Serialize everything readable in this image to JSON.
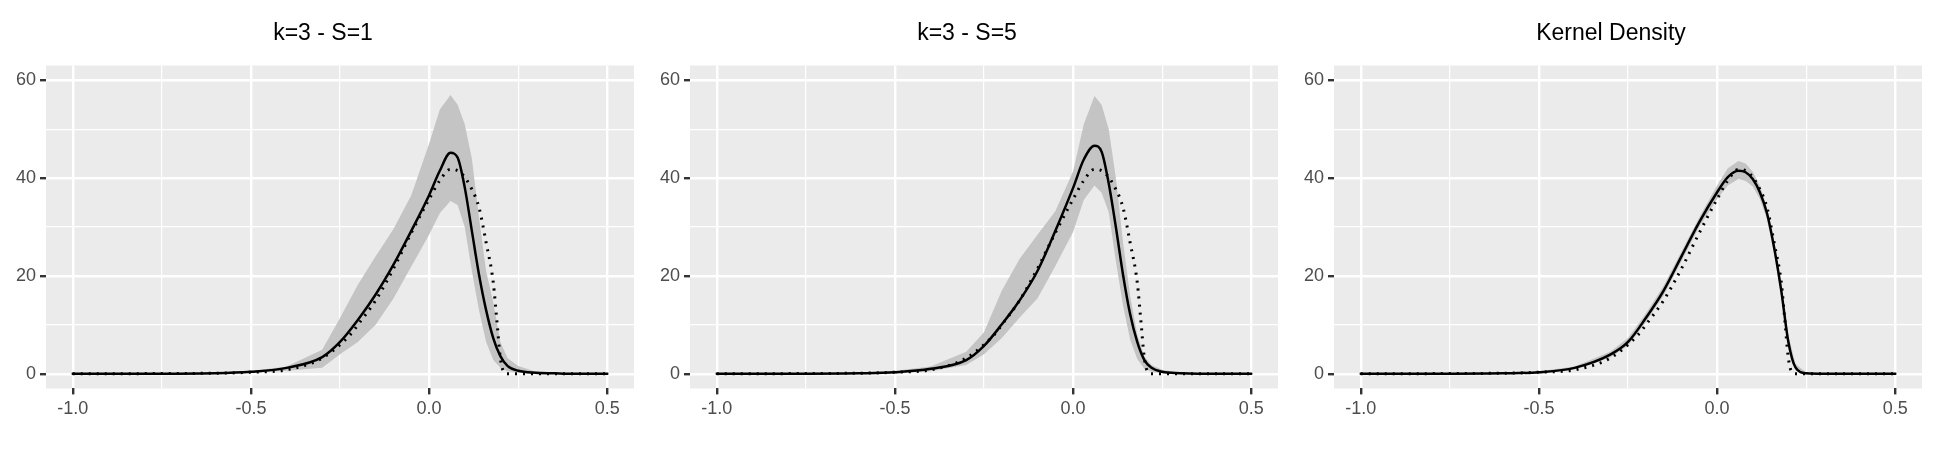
{
  "chart_data": [
    {
      "type": "line",
      "title": "k=3 - S=1",
      "x": [
        -1,
        -0.8,
        -0.6,
        -0.5,
        -0.4,
        -0.3,
        -0.25,
        -0.2,
        -0.15,
        -0.1,
        -0.05,
        0,
        0.03,
        0.06,
        0.08,
        0.1,
        0.12,
        0.14,
        0.16,
        0.18,
        0.2,
        0.22,
        0.25,
        0.3,
        0.35,
        0.4,
        0.5
      ],
      "xlim": [
        -1.075,
        0.575
      ],
      "xticks": [
        {
          "value": -1,
          "label": "-1.0"
        },
        {
          "value": -0.75,
          "label": null
        },
        {
          "value": -0.5,
          "label": "-0.5"
        },
        {
          "value": -0.25,
          "label": null
        },
        {
          "value": 0,
          "label": "0.0"
        },
        {
          "value": 0.25,
          "label": null
        },
        {
          "value": 0.5,
          "label": "0.5"
        }
      ],
      "ylim": [
        -3,
        63
      ],
      "yticks": [
        {
          "value": 0,
          "label": "0"
        },
        {
          "value": 10,
          "label": null
        },
        {
          "value": 20,
          "label": "20"
        },
        {
          "value": 30,
          "label": null
        },
        {
          "value": 40,
          "label": "40"
        },
        {
          "value": 50,
          "label": null
        },
        {
          "value": 60,
          "label": "60"
        }
      ],
      "grid": true,
      "legend": false,
      "marker": "none",
      "series": [
        {
          "type": "line",
          "color": "#000000",
          "line_style": "solid",
          "values": [
            0,
            0,
            0.1,
            0.4,
            1.2,
            3.4,
            6.5,
            11,
            16.2,
            22.3,
            29.2,
            36.5,
            41.5,
            45.2,
            44.2,
            38.1,
            29.2,
            20.3,
            13,
            7.3,
            3.6,
            1.6,
            0.6,
            0.2,
            0.1,
            0,
            0
          ],
          "upper": [
            0,
            0,
            0.2,
            0.6,
            1.5,
            4.9,
            11.4,
            18.2,
            24,
            29.6,
            36.5,
            47,
            54,
            57,
            55,
            51,
            44,
            32,
            21,
            14.6,
            6.5,
            3.2,
            1.6,
            0.4,
            0.2,
            0,
            0
          ],
          "lower": [
            0,
            0,
            0,
            0.2,
            0.6,
            1.2,
            4,
            6.5,
            10,
            15.4,
            21.9,
            28.4,
            32.8,
            35.3,
            34.5,
            30,
            21,
            13,
            6.5,
            2.8,
            1.2,
            0.5,
            0.2,
            0,
            0,
            0,
            0
          ]
        },
        {
          "type": "line",
          "color": "#000000",
          "line_style": "dotted",
          "x": [
            -1,
            -0.6,
            -0.5,
            -0.4,
            -0.3,
            -0.22,
            -0.2,
            -0.15,
            -0.1,
            -0.05,
            0,
            0.03,
            0.06,
            0.09,
            0.12,
            0.14,
            0.16,
            0.18,
            0.19,
            0.2,
            0.21,
            0.22,
            0.3,
            0.5
          ],
          "values": [
            0,
            0.1,
            0.3,
            0.8,
            3.2,
            8.1,
            10,
            15,
            21.5,
            28.8,
            35.7,
            39.5,
            41.8,
            41,
            37.7,
            34,
            26.8,
            18.7,
            11,
            3.2,
            0.3,
            0,
            0,
            0
          ]
        }
      ]
    },
    {
      "type": "line",
      "title": "k=3 - S=5",
      "x": [
        -1,
        -0.8,
        -0.6,
        -0.5,
        -0.4,
        -0.3,
        -0.25,
        -0.2,
        -0.15,
        -0.1,
        -0.05,
        0,
        0.03,
        0.06,
        0.08,
        0.1,
        0.12,
        0.14,
        0.16,
        0.18,
        0.2,
        0.22,
        0.25,
        0.3,
        0.35,
        0.4,
        0.5
      ],
      "xlim": [
        -1.075,
        0.575
      ],
      "xticks": [
        {
          "value": -1,
          "label": "-1.0"
        },
        {
          "value": -0.75,
          "label": null
        },
        {
          "value": -0.5,
          "label": "-0.5"
        },
        {
          "value": -0.25,
          "label": null
        },
        {
          "value": 0,
          "label": "0.0"
        },
        {
          "value": 0.25,
          "label": null
        },
        {
          "value": 0.5,
          "label": "0.5"
        }
      ],
      "ylim": [
        -3,
        63
      ],
      "yticks": [
        {
          "value": 0,
          "label": "0"
        },
        {
          "value": 10,
          "label": null
        },
        {
          "value": 20,
          "label": "20"
        },
        {
          "value": 30,
          "label": null
        },
        {
          "value": 40,
          "label": "40"
        },
        {
          "value": 50,
          "label": null
        },
        {
          "value": 60,
          "label": "60"
        }
      ],
      "grid": true,
      "legend": false,
      "marker": "none",
      "series": [
        {
          "type": "line",
          "color": "#000000",
          "line_style": "solid",
          "values": [
            0,
            0,
            0.1,
            0.3,
            1,
            2.8,
            5.7,
            10.1,
            15,
            21,
            29.2,
            38,
            43.8,
            46.6,
            45.4,
            38.9,
            30,
            20.3,
            12.2,
            6.5,
            2.8,
            1.2,
            0.4,
            0.1,
            0,
            0,
            0
          ],
          "upper": [
            0,
            0,
            0.2,
            0.6,
            1.5,
            4.5,
            8.5,
            17,
            23.5,
            28.4,
            33.2,
            41.4,
            51,
            56.8,
            55,
            50,
            40,
            27,
            16,
            8,
            3.5,
            1.8,
            0.8,
            0.2,
            0.1,
            0,
            0
          ],
          "lower": [
            0,
            0,
            0,
            0.1,
            0.5,
            1.8,
            4,
            7.3,
            11.5,
            15.4,
            22,
            29,
            35.5,
            38.5,
            37,
            33,
            23,
            14,
            7,
            3,
            1,
            0.4,
            0.1,
            0,
            0,
            0,
            0
          ]
        },
        {
          "type": "line",
          "color": "#000000",
          "line_style": "dotted",
          "x": [
            -1,
            -0.6,
            -0.5,
            -0.4,
            -0.3,
            -0.22,
            -0.2,
            -0.15,
            -0.1,
            -0.05,
            0,
            0.03,
            0.06,
            0.09,
            0.12,
            0.14,
            0.16,
            0.18,
            0.19,
            0.2,
            0.21,
            0.22,
            0.3,
            0.5
          ],
          "values": [
            0,
            0.1,
            0.3,
            0.8,
            3.2,
            8.1,
            10,
            15,
            21.5,
            28.8,
            35.7,
            39.5,
            41.8,
            41,
            37.7,
            34,
            26.8,
            18.7,
            11,
            3.2,
            0.3,
            0,
            0,
            0
          ]
        }
      ]
    },
    {
      "type": "line",
      "title": "Kernel Density",
      "x": [
        -1,
        -0.8,
        -0.6,
        -0.5,
        -0.4,
        -0.3,
        -0.25,
        -0.2,
        -0.15,
        -0.1,
        -0.05,
        0,
        0.03,
        0.06,
        0.08,
        0.1,
        0.12,
        0.14,
        0.16,
        0.18,
        0.2,
        0.22,
        0.25,
        0.3,
        0.35,
        0.4,
        0.5
      ],
      "xlim": [
        -1.075,
        0.575
      ],
      "xticks": [
        {
          "value": -1,
          "label": "-1.0"
        },
        {
          "value": -0.75,
          "label": null
        },
        {
          "value": -0.5,
          "label": "-0.5"
        },
        {
          "value": -0.25,
          "label": null
        },
        {
          "value": 0,
          "label": "0.0"
        },
        {
          "value": 0.25,
          "label": null
        },
        {
          "value": 0.5,
          "label": "0.5"
        }
      ],
      "ylim": [
        -3,
        63
      ],
      "yticks": [
        {
          "value": 0,
          "label": "0"
        },
        {
          "value": 10,
          "label": null
        },
        {
          "value": 20,
          "label": "20"
        },
        {
          "value": 30,
          "label": null
        },
        {
          "value": 40,
          "label": "40"
        },
        {
          "value": 50,
          "label": null
        },
        {
          "value": 60,
          "label": "60"
        }
      ],
      "grid": true,
      "legend": false,
      "marker": "none",
      "series": [
        {
          "type": "line",
          "color": "#000000",
          "line_style": "solid",
          "values": [
            0,
            0,
            0.1,
            0.3,
            1.2,
            3.9,
            6.5,
            11.4,
            17,
            24,
            31,
            37.1,
            40.2,
            41.5,
            41.2,
            39.8,
            37.1,
            32.8,
            25.8,
            17,
            6.5,
            1.3,
            0.1,
            0,
            0,
            0,
            0
          ],
          "upper": [
            0,
            0,
            0.2,
            0.5,
            1.5,
            4.5,
            7.3,
            12.3,
            18,
            25,
            32,
            38.5,
            42,
            43.5,
            43,
            41.3,
            38.5,
            34,
            27,
            18.3,
            7.8,
            2,
            0.3,
            0,
            0,
            0,
            0
          ],
          "lower": [
            0,
            0,
            0,
            0.1,
            0.9,
            3.3,
            5.7,
            10.5,
            16,
            23,
            30,
            35.7,
            38.5,
            39.8,
            39.4,
            38.3,
            35.7,
            31.6,
            24.6,
            15.7,
            5.2,
            0.7,
            0,
            0,
            0,
            0,
            0
          ]
        },
        {
          "type": "line",
          "color": "#000000",
          "line_style": "dotted",
          "x": [
            -1,
            -0.6,
            -0.5,
            -0.4,
            -0.3,
            -0.22,
            -0.2,
            -0.15,
            -0.1,
            -0.05,
            0,
            0.03,
            0.06,
            0.09,
            0.12,
            0.14,
            0.16,
            0.18,
            0.19,
            0.2,
            0.21,
            0.22,
            0.3,
            0.5
          ],
          "values": [
            0,
            0.1,
            0.3,
            0.8,
            3.2,
            8.1,
            10,
            15,
            21.5,
            28.8,
            35.7,
            39.5,
            41.8,
            41,
            37.7,
            34,
            26.8,
            18.7,
            11,
            3.2,
            0.3,
            0,
            0,
            0
          ]
        }
      ]
    }
  ]
}
